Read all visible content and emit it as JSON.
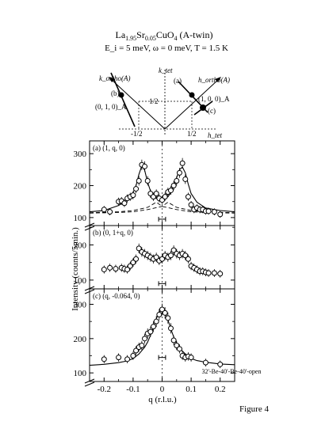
{
  "header": {
    "title_main": "La",
    "title_sub1": "1.95",
    "title_mid": "Sr",
    "title_sub2": "0.05",
    "title_end": "CuO",
    "title_sub3": "4",
    "title_suffix": " (A-twin)",
    "conditions": "E_i = 5 meV, ω = 0 meV, T = 1.5 K"
  },
  "inset": {
    "k_ortho_label": "k_ortho(A)",
    "h_ortho_label": "h_ortho(A)",
    "k_tet_label": "k_tet",
    "h_tet_label": "h_tet",
    "half_pos": "1/2",
    "half_neg_k": "-1/2",
    "half_neg_h": "-1/2",
    "half_pos_h": "1/2",
    "point_b_label": "(b)",
    "point_a_label": "(a)",
    "point_c_label": "(c)",
    "point_010_label": "(0, 1, 0)_A",
    "point_100_label": "(1, 0, 0)_A"
  },
  "y_axis_label": "Intensity (counts/5min.)",
  "x_axis_label": "q (r.l.u.)",
  "figure_caption": "Figure 4",
  "collimation": "32'-Be-40'-Be-40'-open",
  "chart_data": [
    {
      "type": "scatter",
      "panel_label": "(a) (1, q, 0)",
      "xlim": [
        -0.25,
        0.25
      ],
      "ylim": [
        75,
        340
      ],
      "yticks": [
        100,
        200,
        300
      ],
      "resolution_bar_center": 0,
      "resolution_bar_halfwidth": 0.012,
      "resolution_bar_y": 95,
      "series": [
        {
          "x": [
            -0.2,
            -0.18,
            -0.15,
            -0.14,
            -0.13,
            -0.12,
            -0.11,
            -0.1,
            -0.09,
            -0.08,
            -0.07,
            -0.06,
            -0.05,
            -0.04,
            -0.03,
            -0.02,
            -0.01,
            0.0,
            0.01,
            0.02,
            0.03,
            0.04,
            0.05,
            0.06,
            0.07,
            0.08,
            0.09,
            0.1,
            0.11,
            0.12,
            0.13,
            0.14,
            0.15,
            0.16,
            0.18,
            0.2
          ],
          "y": [
            125,
            118,
            150,
            152,
            145,
            160,
            165,
            170,
            190,
            215,
            265,
            260,
            215,
            175,
            165,
            175,
            160,
            155,
            165,
            180,
            185,
            200,
            215,
            240,
            270,
            220,
            165,
            140,
            125,
            130,
            125,
            125,
            120,
            120,
            118,
            110
          ]
        }
      ],
      "fit_line": {
        "x": [
          -0.25,
          -0.2,
          -0.15,
          -0.12,
          -0.1,
          -0.09,
          -0.08,
          -0.07,
          -0.06,
          -0.05,
          -0.04,
          -0.03,
          -0.02,
          -0.01,
          0.0,
          0.01,
          0.02,
          0.03,
          0.04,
          0.05,
          0.06,
          0.07,
          0.08,
          0.09,
          0.1,
          0.12,
          0.15,
          0.2,
          0.25
        ],
        "y": [
          118,
          122,
          138,
          155,
          178,
          200,
          235,
          262,
          248,
          210,
          183,
          168,
          160,
          158,
          158,
          160,
          165,
          178,
          200,
          225,
          250,
          258,
          240,
          205,
          175,
          148,
          130,
          122,
          118
        ]
      },
      "dashed_lines": [
        {
          "x": [
            -0.25,
            -0.15,
            -0.1,
            -0.05,
            -0.02,
            0.0,
            0.05,
            0.1,
            0.15,
            0.25
          ],
          "y": [
            115,
            118,
            122,
            132,
            148,
            135,
            125,
            118,
            116,
            114
          ]
        },
        {
          "x": [
            -0.25,
            -0.15,
            -0.1,
            -0.05,
            0.0,
            0.02,
            0.05,
            0.1,
            0.15,
            0.25
          ],
          "y": [
            114,
            116,
            118,
            125,
            135,
            148,
            132,
            122,
            118,
            115
          ]
        }
      ]
    },
    {
      "type": "scatter",
      "panel_label": "(b) (0, 1+q, 0)",
      "xlim": [
        -0.25,
        0.25
      ],
      "ylim": [
        75,
        255
      ],
      "yticks": [
        100,
        200
      ],
      "resolution_bar_center": 0,
      "resolution_bar_halfwidth": 0.012,
      "resolution_bar_y": 90,
      "series": [
        {
          "x": [
            -0.2,
            -0.18,
            -0.16,
            -0.14,
            -0.13,
            -0.12,
            -0.11,
            -0.1,
            -0.09,
            -0.08,
            -0.07,
            -0.06,
            -0.05,
            -0.04,
            -0.03,
            -0.02,
            -0.01,
            0.0,
            0.01,
            0.02,
            0.03,
            0.04,
            0.05,
            0.06,
            0.07,
            0.08,
            0.09,
            0.1,
            0.11,
            0.12,
            0.13,
            0.14,
            0.15,
            0.16,
            0.18,
            0.2
          ],
          "y": [
            130,
            135,
            132,
            135,
            132,
            130,
            140,
            150,
            160,
            190,
            180,
            175,
            170,
            165,
            160,
            165,
            155,
            160,
            170,
            165,
            170,
            185,
            175,
            170,
            175,
            170,
            160,
            140,
            135,
            130,
            125,
            125,
            122,
            120,
            120,
            118
          ]
        }
      ]
    },
    {
      "type": "scatter",
      "panel_label": "(c) (q, -0.064, 0)",
      "xlim": [
        -0.25,
        0.25
      ],
      "ylim": [
        75,
        345
      ],
      "yticks": [
        100,
        200,
        300
      ],
      "xticks": [
        -0.2,
        -0.1,
        0,
        0.1,
        0.2
      ],
      "xtick_labels": [
        "-0.2",
        "-0.1",
        "0",
        "0.1",
        "0.2"
      ],
      "resolution_bar_center": 0,
      "resolution_bar_halfwidth": 0.012,
      "resolution_bar_y": 145,
      "series": [
        {
          "x": [
            -0.2,
            -0.15,
            -0.12,
            -0.1,
            -0.09,
            -0.08,
            -0.07,
            -0.06,
            -0.05,
            -0.04,
            -0.03,
            -0.02,
            -0.01,
            0.0,
            0.01,
            0.02,
            0.03,
            0.04,
            0.05,
            0.06,
            0.07,
            0.08,
            0.09,
            0.1,
            0.15,
            0.2
          ],
          "y": [
            140,
            145,
            140,
            150,
            165,
            175,
            180,
            200,
            215,
            220,
            235,
            250,
            270,
            285,
            275,
            260,
            230,
            195,
            180,
            170,
            150,
            145,
            148,
            145,
            130,
            125
          ]
        }
      ],
      "fit_line": {
        "x": [
          -0.25,
          -0.2,
          -0.15,
          -0.12,
          -0.1,
          -0.08,
          -0.06,
          -0.05,
          -0.04,
          -0.03,
          -0.02,
          -0.01,
          0.0,
          0.01,
          0.02,
          0.03,
          0.04,
          0.05,
          0.06,
          0.08,
          0.1,
          0.12,
          0.15,
          0.2,
          0.25
        ],
        "y": [
          122,
          125,
          130,
          135,
          142,
          155,
          175,
          190,
          210,
          232,
          258,
          278,
          285,
          276,
          255,
          228,
          205,
          186,
          172,
          155,
          142,
          136,
          131,
          126,
          124
        ]
      }
    }
  ]
}
